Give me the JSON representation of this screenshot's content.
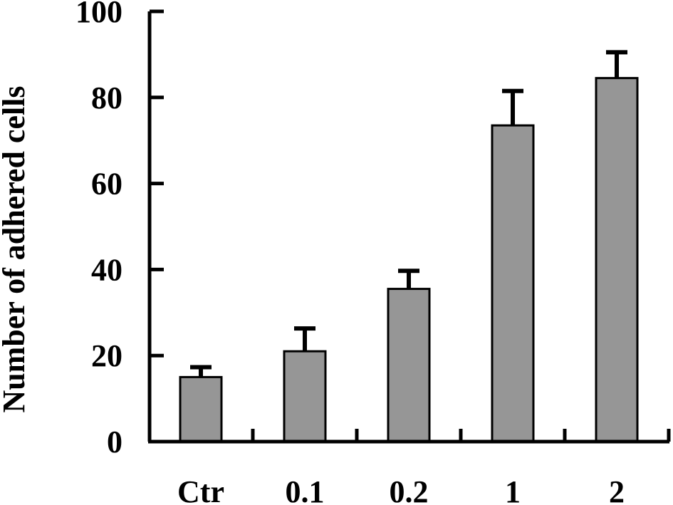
{
  "chart_data": {
    "type": "bar",
    "title": "",
    "xlabel": "",
    "ylabel": "Number of adhered cells",
    "categories": [
      "Ctr",
      "0.1",
      "0.2",
      "1",
      "2"
    ],
    "values": [
      15,
      21,
      35.5,
      73.5,
      84.5
    ],
    "error_bars": [
      2.3,
      5.3,
      4.2,
      8,
      6
    ],
    "yticks": [
      "0",
      "20",
      "40",
      "60",
      "80",
      "100"
    ],
    "ylim": [
      0,
      100
    ],
    "grid": false,
    "colors": {
      "bar_fill": "#969696",
      "bar_stroke": "#000000",
      "axis": "#000000"
    }
  }
}
